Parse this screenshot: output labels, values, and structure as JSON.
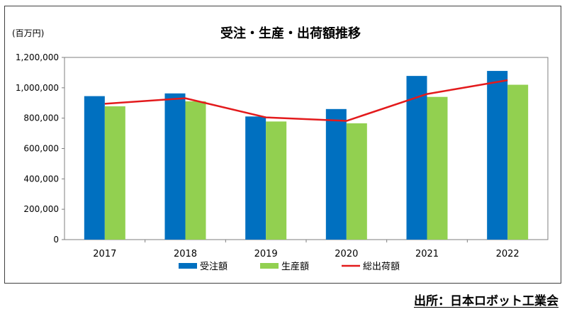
{
  "chart_data": {
    "type": "bar",
    "title": "受注・生産・出荷額推移",
    "unit_label": "(百万円)",
    "categories": [
      "2017",
      "2018",
      "2019",
      "2020",
      "2021",
      "2022"
    ],
    "series": [
      {
        "name": "受注額",
        "kind": "bar",
        "color": "#0070C0",
        "values": [
          945000,
          963000,
          811000,
          860000,
          1078000,
          1111000
        ]
      },
      {
        "name": "生産額",
        "kind": "bar",
        "color": "#92D050",
        "values": [
          878000,
          911000,
          778000,
          766000,
          940000,
          1020000
        ]
      },
      {
        "name": "総出荷額",
        "kind": "line",
        "color": "#E31A1C",
        "values": [
          895000,
          931000,
          805000,
          782000,
          959000,
          1050000
        ]
      }
    ],
    "ylim": [
      0,
      1200000
    ],
    "yticks": [
      "0",
      "200,000",
      "400,000",
      "600,000",
      "800,000",
      "1,000,000",
      "1,200,000"
    ],
    "ytick_values": [
      0,
      200000,
      400000,
      600000,
      800000,
      1000000,
      1200000
    ],
    "grid": false,
    "legend_position": "bottom"
  },
  "source": "出所：日本ロボット工業会"
}
